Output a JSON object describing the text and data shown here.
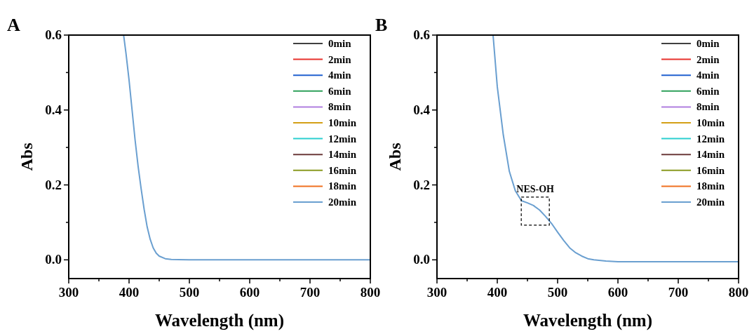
{
  "chart_data": [
    {
      "type": "line",
      "title": "A",
      "xlabel": "Wavelength (nm)",
      "ylabel": "Abs",
      "xlim": [
        300,
        800
      ],
      "ylim": [
        -0.05,
        0.6
      ],
      "xticks": [
        300,
        {
          "value": 350,
          "label": null
        },
        400,
        {
          "value": 450,
          "label": null
        },
        500,
        {
          "value": 550,
          "label": null
        },
        600,
        {
          "value": 650,
          "label": null
        },
        700,
        {
          "value": 750,
          "label": null
        },
        800
      ],
      "yticks": [
        {
          "value": 0,
          "label": "0.0"
        },
        {
          "value": 0.1,
          "label": null
        },
        0.2,
        {
          "value": 0.3,
          "label": null
        },
        0.4,
        {
          "value": 0.5,
          "label": null
        },
        0.6
      ],
      "grid": false,
      "legend": "top right",
      "line_style": "solid",
      "x": [
        391,
        395,
        400,
        405,
        410,
        415,
        420,
        425,
        430,
        435,
        440,
        445,
        450,
        460,
        470,
        500,
        600,
        700,
        800
      ],
      "series": [
        {
          "name": "0min",
          "color": "#404040",
          "values": [
            null,
            null,
            null,
            null,
            null,
            null,
            null,
            null,
            null,
            null,
            null,
            null,
            null,
            null,
            null,
            null,
            null,
            null,
            null
          ]
        },
        {
          "name": "2min",
          "color": "#e8322c",
          "values": [
            null,
            null,
            null,
            null,
            null,
            null,
            null,
            null,
            null,
            null,
            null,
            null,
            null,
            null,
            null,
            null,
            null,
            null,
            null
          ]
        },
        {
          "name": "4min",
          "color": "#2060d0",
          "values": [
            null,
            null,
            null,
            null,
            null,
            null,
            null,
            null,
            null,
            null,
            null,
            null,
            null,
            null,
            null,
            null,
            null,
            null,
            null
          ]
        },
        {
          "name": "6min",
          "color": "#2ea05a",
          "values": [
            null,
            null,
            null,
            null,
            null,
            null,
            null,
            null,
            null,
            null,
            null,
            null,
            null,
            null,
            null,
            null,
            null,
            null,
            null
          ]
        },
        {
          "name": "8min",
          "color": "#b07ee0",
          "values": [
            null,
            null,
            null,
            null,
            null,
            null,
            null,
            null,
            null,
            null,
            null,
            null,
            null,
            null,
            null,
            null,
            null,
            null,
            null
          ]
        },
        {
          "name": "10min",
          "color": "#d4a017",
          "values": [
            null,
            null,
            null,
            null,
            null,
            null,
            null,
            null,
            null,
            null,
            null,
            null,
            null,
            null,
            null,
            null,
            null,
            null,
            null
          ]
        },
        {
          "name": "12min",
          "color": "#2ccfd0",
          "values": [
            null,
            null,
            null,
            null,
            null,
            null,
            null,
            null,
            null,
            null,
            null,
            null,
            null,
            null,
            null,
            null,
            null,
            null,
            null
          ]
        },
        {
          "name": "14min",
          "color": "#6b3a3a",
          "values": [
            null,
            null,
            null,
            null,
            null,
            null,
            null,
            null,
            null,
            null,
            null,
            null,
            null,
            null,
            null,
            null,
            null,
            null,
            null
          ]
        },
        {
          "name": "16min",
          "color": "#8a9a20",
          "values": [
            null,
            null,
            null,
            null,
            null,
            null,
            null,
            null,
            null,
            null,
            null,
            null,
            null,
            null,
            null,
            null,
            null,
            null,
            null
          ]
        },
        {
          "name": "18min",
          "color": "#f07020",
          "values": [
            null,
            null,
            null,
            null,
            null,
            null,
            null,
            null,
            null,
            null,
            null,
            null,
            null,
            null,
            null,
            null,
            null,
            null,
            null
          ]
        },
        {
          "name": "20min",
          "color": "#6a9fd0",
          "values": [
            0.6,
            0.55,
            0.48,
            0.4,
            0.32,
            0.25,
            0.19,
            0.135,
            0.088,
            0.055,
            0.032,
            0.018,
            0.01,
            0.003,
            0.001,
            0,
            0,
            0,
            0
          ]
        }
      ]
    },
    {
      "type": "line",
      "title": "B",
      "xlabel": "Wavelength (nm)",
      "ylabel": "Abs",
      "xlim": [
        300,
        800
      ],
      "ylim": [
        -0.05,
        0.6
      ],
      "xticks": [
        300,
        {
          "value": 350,
          "label": null
        },
        400,
        {
          "value": 450,
          "label": null
        },
        500,
        {
          "value": 550,
          "label": null
        },
        600,
        {
          "value": 650,
          "label": null
        },
        700,
        {
          "value": 750,
          "label": null
        },
        800
      ],
      "yticks": [
        {
          "value": 0,
          "label": "0.0"
        },
        {
          "value": 0.1,
          "label": null
        },
        0.2,
        {
          "value": 0.3,
          "label": null
        },
        0.4,
        {
          "value": 0.5,
          "label": null
        },
        0.6
      ],
      "grid": false,
      "legend": "top right",
      "line_style": "solid",
      "annotations": [
        {
          "text": "NES-OH",
          "x": 463,
          "y": 0.13
        }
      ],
      "x": [
        393,
        400,
        410,
        420,
        430,
        440,
        450,
        460,
        470,
        480,
        490,
        500,
        510,
        520,
        530,
        540,
        550,
        560,
        580,
        600,
        700,
        800
      ],
      "series": [
        {
          "name": "0min",
          "color": "#404040",
          "values": [
            null,
            null,
            null,
            null,
            null,
            null,
            null,
            null,
            null,
            null,
            null,
            null,
            null,
            null,
            null,
            null,
            null,
            null,
            null,
            null,
            null,
            null
          ]
        },
        {
          "name": "2min",
          "color": "#e8322c",
          "values": [
            null,
            null,
            null,
            null,
            null,
            null,
            null,
            null,
            null,
            null,
            null,
            null,
            null,
            null,
            null,
            null,
            null,
            null,
            null,
            null,
            null,
            null
          ]
        },
        {
          "name": "4min",
          "color": "#2060d0",
          "values": [
            null,
            null,
            null,
            null,
            null,
            null,
            null,
            null,
            null,
            null,
            null,
            null,
            null,
            null,
            null,
            null,
            null,
            null,
            null,
            null,
            null,
            null
          ]
        },
        {
          "name": "6min",
          "color": "#2ea05a",
          "values": [
            null,
            null,
            null,
            null,
            null,
            null,
            null,
            null,
            null,
            null,
            null,
            null,
            null,
            null,
            null,
            null,
            null,
            null,
            null,
            null,
            null,
            null
          ]
        },
        {
          "name": "8min",
          "color": "#b07ee0",
          "values": [
            null,
            null,
            null,
            null,
            null,
            null,
            null,
            null,
            null,
            null,
            null,
            null,
            null,
            null,
            null,
            null,
            null,
            null,
            null,
            null,
            null,
            null
          ]
        },
        {
          "name": "10min",
          "color": "#d4a017",
          "values": [
            null,
            null,
            null,
            null,
            null,
            null,
            null,
            null,
            null,
            null,
            null,
            null,
            null,
            null,
            null,
            null,
            null,
            null,
            null,
            null,
            null,
            null
          ]
        },
        {
          "name": "12min",
          "color": "#2ccfd0",
          "values": [
            null,
            null,
            null,
            null,
            null,
            null,
            null,
            null,
            null,
            null,
            null,
            null,
            null,
            null,
            null,
            null,
            null,
            null,
            null,
            null,
            null,
            null
          ]
        },
        {
          "name": "14min",
          "color": "#6b3a3a",
          "values": [
            null,
            null,
            null,
            null,
            null,
            null,
            null,
            null,
            null,
            null,
            null,
            null,
            null,
            null,
            null,
            null,
            null,
            null,
            null,
            null,
            null,
            null
          ]
        },
        {
          "name": "16min",
          "color": "#8a9a20",
          "values": [
            null,
            null,
            null,
            null,
            null,
            null,
            null,
            null,
            null,
            null,
            null,
            null,
            null,
            null,
            null,
            null,
            null,
            null,
            null,
            null,
            null,
            null
          ]
        },
        {
          "name": "18min",
          "color": "#f07020",
          "values": [
            null,
            null,
            null,
            null,
            null,
            null,
            null,
            null,
            null,
            null,
            null,
            null,
            null,
            null,
            null,
            null,
            null,
            null,
            null,
            null,
            null,
            null
          ]
        },
        {
          "name": "20min",
          "color": "#6a9fd0",
          "values": [
            0.6,
            0.462,
            0.333,
            0.236,
            0.184,
            0.158,
            0.152,
            0.145,
            0.133,
            0.116,
            0.097,
            0.074,
            0.052,
            0.032,
            0.019,
            0.01,
            0.003,
            0,
            -0.003,
            -0.005,
            -0.005,
            -0.005
          ]
        }
      ]
    }
  ]
}
